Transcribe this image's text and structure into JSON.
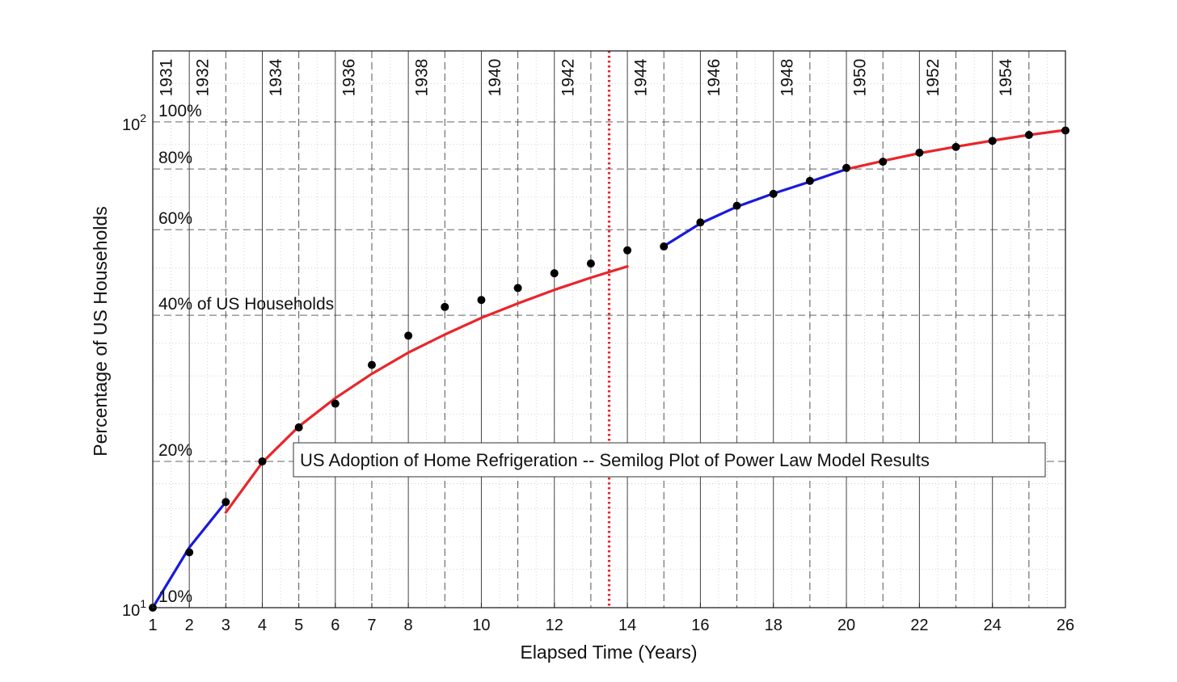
{
  "chart_data": {
    "type": "line",
    "title": "US Adoption of Home Refrigeration -- Semilog Plot of Power Law Model Results",
    "xlabel": "Elapsed Time (Years)",
    "ylabel": "Percentage of US Households",
    "xlim": [
      1,
      26
    ],
    "ylim": [
      10,
      140
    ],
    "yscale": "log",
    "grid": true,
    "x_ticks": [
      1,
      2,
      3,
      4,
      5,
      6,
      7,
      8,
      10,
      12,
      14,
      16,
      18,
      20,
      22,
      24,
      26
    ],
    "y_ticks": [
      {
        "value": 10,
        "base": "10",
        "exp": "1"
      },
      {
        "value": 100,
        "base": "10",
        "exp": "2"
      }
    ],
    "year_labels": [
      {
        "x": 1,
        "label": "1931"
      },
      {
        "x": 2,
        "label": "1932"
      },
      {
        "x": 4,
        "label": "1934"
      },
      {
        "x": 6,
        "label": "1936"
      },
      {
        "x": 8,
        "label": "1938"
      },
      {
        "x": 10,
        "label": "1940"
      },
      {
        "x": 12,
        "label": "1942"
      },
      {
        "x": 14,
        "label": "1944"
      },
      {
        "x": 16,
        "label": "1946"
      },
      {
        "x": 18,
        "label": "1948"
      },
      {
        "x": 20,
        "label": "1950"
      },
      {
        "x": 22,
        "label": "1952"
      },
      {
        "x": 24,
        "label": "1954"
      }
    ],
    "solid_vlines": [
      2,
      4,
      6,
      8,
      10,
      12,
      14,
      16,
      18,
      20,
      22,
      24
    ],
    "dashed_vlines": [
      3,
      5,
      7,
      9,
      11,
      13,
      15,
      17,
      19,
      21,
      23,
      25
    ],
    "percent_lines": [
      {
        "value": 100,
        "label": "100%"
      },
      {
        "value": 80,
        "label": "80%"
      },
      {
        "value": 60,
        "label": "60%"
      },
      {
        "value": 40,
        "label": "40% of US Households"
      },
      {
        "value": 20,
        "label": "20%"
      },
      {
        "value": 10,
        "label": "10%"
      }
    ],
    "marker_line": {
      "x": 13.5,
      "color": "#e8262b",
      "style": "dotted"
    },
    "points": {
      "x": [
        1,
        2,
        3,
        4,
        5,
        6,
        7,
        8,
        9,
        10,
        11,
        12,
        13,
        14,
        15,
        16,
        17,
        18,
        19,
        20,
        21,
        22,
        23,
        24,
        25,
        26
      ],
      "y": [
        10,
        13,
        16.5,
        20,
        23.5,
        26.3,
        31.6,
        36.3,
        41.6,
        43,
        45.5,
        48.8,
        51.1,
        54.4,
        55.4,
        62.1,
        67.2,
        71.1,
        75.6,
        80.4,
        82.8,
        86.4,
        88.8,
        91.4,
        94,
        96
      ]
    },
    "series": [
      {
        "color": "#1a1adb",
        "x": [
          1,
          2,
          3
        ],
        "y": [
          10,
          13.3,
          16.5
        ]
      },
      {
        "color": "#e8262b",
        "x": [
          3,
          4,
          5,
          6,
          7,
          8,
          9,
          10,
          11,
          12,
          13,
          14
        ],
        "y": [
          15.7,
          19.9,
          23.6,
          27,
          30.3,
          33.5,
          36.5,
          39.5,
          42.3,
          45.1,
          47.8,
          50.4
        ]
      },
      {
        "color": "#1a1adb",
        "x": [
          15,
          16,
          17,
          18,
          19,
          20
        ],
        "y": [
          55.5,
          61.8,
          66.9,
          71.2,
          75.3,
          79.9
        ]
      },
      {
        "color": "#e8262b",
        "x": [
          20,
          21,
          22,
          23,
          24,
          25,
          26
        ],
        "y": [
          79.9,
          83.1,
          86.2,
          88.9,
          91.5,
          94,
          96.2
        ]
      }
    ],
    "colors": {
      "blue": "#1a1adb",
      "red": "#e8262b",
      "points": "#000000"
    }
  }
}
